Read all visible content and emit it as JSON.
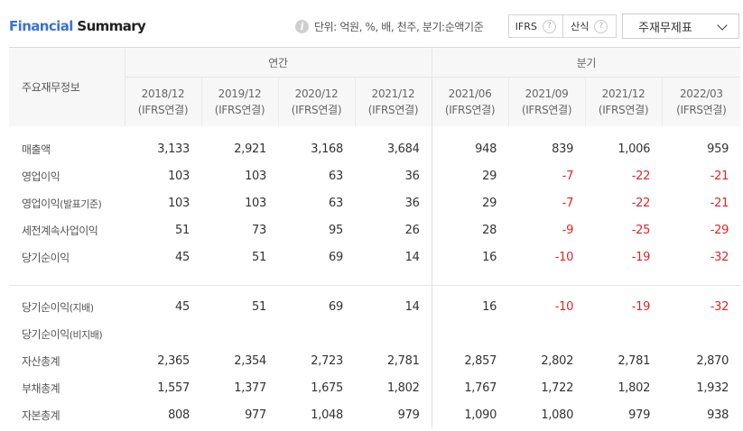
{
  "header": {
    "title_part1": "Financial",
    "title_part2": "Summary",
    "unit_text": "단위: 억원, %, 배, 천주, 분기:순액기준",
    "toggle": {
      "ifrs_label": "IFRS",
      "calc_label": "산식"
    },
    "select_value": "주재무제표"
  },
  "table": {
    "row_header": "주요재무정보",
    "group_annual": "연간",
    "group_quarterly": "분기",
    "columns": [
      {
        "period": "2018/12",
        "basis": "(IFRS연결)"
      },
      {
        "period": "2019/12",
        "basis": "(IFRS연결)"
      },
      {
        "period": "2020/12",
        "basis": "(IFRS연결)"
      },
      {
        "period": "2021/12",
        "basis": "(IFRS연결)"
      },
      {
        "period": "2021/06",
        "basis": "(IFRS연결)"
      },
      {
        "period": "2021/09",
        "basis": "(IFRS연결)"
      },
      {
        "period": "2021/12",
        "basis": "(IFRS연결)"
      },
      {
        "period": "2022/03",
        "basis": "(IFRS연결)"
      }
    ],
    "rows": [
      {
        "label": "매출액",
        "sub": "",
        "values": [
          "3,133",
          "2,921",
          "3,168",
          "3,684",
          "948",
          "839",
          "1,006",
          "959"
        ]
      },
      {
        "label": "영업이익",
        "sub": "",
        "values": [
          "103",
          "103",
          "63",
          "36",
          "29",
          "-7",
          "-22",
          "-21"
        ]
      },
      {
        "label": "영업이익",
        "sub": "(발표기준)",
        "values": [
          "103",
          "103",
          "63",
          "36",
          "29",
          "-7",
          "-22",
          "-21"
        ]
      },
      {
        "label": "세전계속사업이익",
        "sub": "",
        "values": [
          "51",
          "73",
          "95",
          "26",
          "28",
          "-9",
          "-25",
          "-29"
        ]
      },
      {
        "label": "당기순이익",
        "sub": "",
        "values": [
          "45",
          "51",
          "69",
          "14",
          "16",
          "-10",
          "-19",
          "-32"
        ]
      },
      {
        "label": "당기순이익",
        "sub": "(지배)",
        "values": [
          "45",
          "51",
          "69",
          "14",
          "16",
          "-10",
          "-19",
          "-32"
        ]
      },
      {
        "label": "당기순이익",
        "sub": "(비지배)",
        "values": [
          "",
          "",
          "",
          "",
          "",
          "",
          "",
          ""
        ]
      },
      {
        "label": "자산총계",
        "sub": "",
        "values": [
          "2,365",
          "2,354",
          "2,723",
          "2,781",
          "2,857",
          "2,802",
          "2,781",
          "2,870"
        ]
      },
      {
        "label": "부채총계",
        "sub": "",
        "values": [
          "1,557",
          "1,377",
          "1,675",
          "1,802",
          "1,767",
          "1,722",
          "1,802",
          "1,932"
        ]
      },
      {
        "label": "자본총계",
        "sub": "",
        "values": [
          "808",
          "977",
          "1,048",
          "979",
          "1,090",
          "1,080",
          "979",
          "938"
        ]
      }
    ]
  }
}
